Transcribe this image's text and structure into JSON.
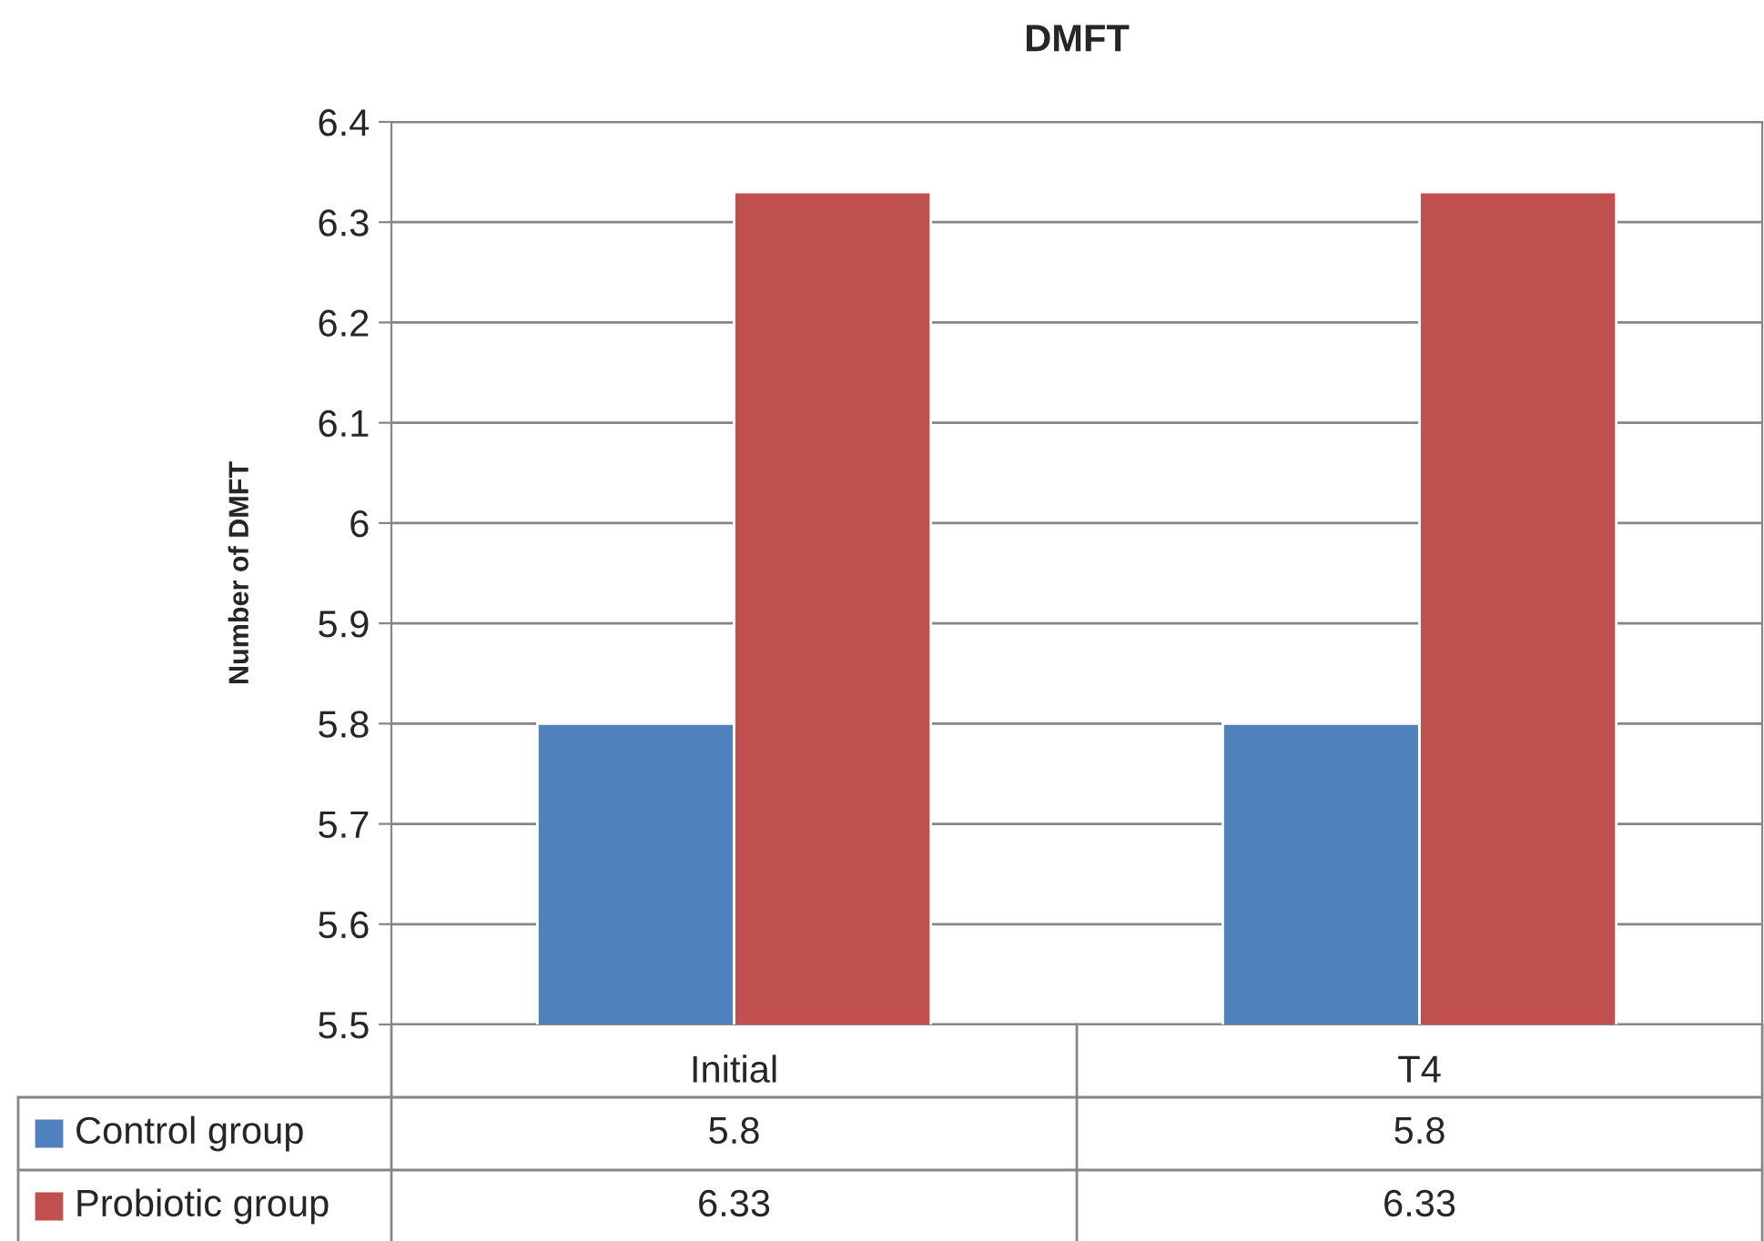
{
  "chart_data": {
    "type": "bar",
    "title": "DMFT",
    "ylabel": "Number of DMFT",
    "categories": [
      "Initial",
      "T4"
    ],
    "series": [
      {
        "name": "Control group",
        "color": "#4f81bd",
        "values": [
          5.8,
          5.8
        ]
      },
      {
        "name": "Probiotic group",
        "color": "#c0504d",
        "values": [
          6.33,
          6.33
        ]
      }
    ],
    "ylim": [
      5.5,
      6.4
    ],
    "yticks": [
      5.5,
      5.6,
      5.7,
      5.8,
      5.9,
      {
        "value": 6.0,
        "label": "6"
      },
      6.1,
      6.2,
      6.3,
      6.4
    ],
    "grid": "y",
    "legend": "bottom",
    "data_labels": true
  }
}
